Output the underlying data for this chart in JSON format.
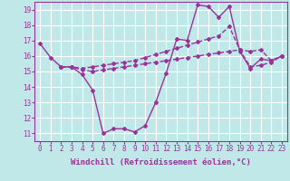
{
  "background_color": "#c0e8e8",
  "grid_color": "#ffffff",
  "line_color": "#993399",
  "marker": "D",
  "markersize": 2.0,
  "linewidth": 1.0,
  "xlabel": "Windchill (Refroidissement éolien,°C)",
  "xlabel_fontsize": 6.5,
  "tick_fontsize": 5.5,
  "xlim": [
    -0.5,
    23.5
  ],
  "ylim": [
    10.5,
    19.5
  ],
  "yticks": [
    11,
    12,
    13,
    14,
    15,
    16,
    17,
    18,
    19
  ],
  "xticks": [
    0,
    1,
    2,
    3,
    4,
    5,
    6,
    7,
    8,
    9,
    10,
    11,
    12,
    13,
    14,
    15,
    16,
    17,
    18,
    19,
    20,
    21,
    22,
    23
  ],
  "line1_x": [
    0,
    1,
    2,
    3,
    4,
    5,
    6,
    7,
    8,
    9,
    10,
    11,
    12,
    13,
    14,
    15,
    16,
    17,
    18,
    19,
    20,
    21,
    22,
    23
  ],
  "line1_y": [
    16.8,
    15.9,
    15.3,
    15.3,
    14.8,
    13.8,
    11.0,
    11.3,
    11.3,
    11.1,
    11.5,
    13.0,
    14.9,
    17.1,
    17.0,
    19.3,
    19.2,
    18.5,
    19.2,
    16.3,
    15.2,
    15.8,
    15.7,
    16.0
  ],
  "line2_x": [
    2,
    3,
    4,
    5,
    6,
    7,
    8,
    9,
    10,
    11,
    12,
    13,
    14,
    15,
    16,
    17,
    18,
    19,
    20,
    21,
    22,
    23
  ],
  "line2_y": [
    15.3,
    15.3,
    15.2,
    15.3,
    15.4,
    15.5,
    15.6,
    15.7,
    15.9,
    16.1,
    16.3,
    16.5,
    16.7,
    16.9,
    17.1,
    17.3,
    17.9,
    16.4,
    16.3,
    16.4,
    15.7,
    16.0
  ],
  "line3_x": [
    2,
    3,
    4,
    5,
    6,
    7,
    8,
    9,
    10,
    11,
    12,
    13,
    14,
    15,
    16,
    17,
    18,
    19,
    20,
    21,
    22,
    23
  ],
  "line3_y": [
    15.3,
    15.3,
    15.1,
    15.0,
    15.1,
    15.2,
    15.3,
    15.4,
    15.5,
    15.6,
    15.7,
    15.8,
    15.9,
    16.0,
    16.1,
    16.2,
    16.3,
    16.4,
    15.3,
    15.4,
    15.6,
    16.0
  ]
}
